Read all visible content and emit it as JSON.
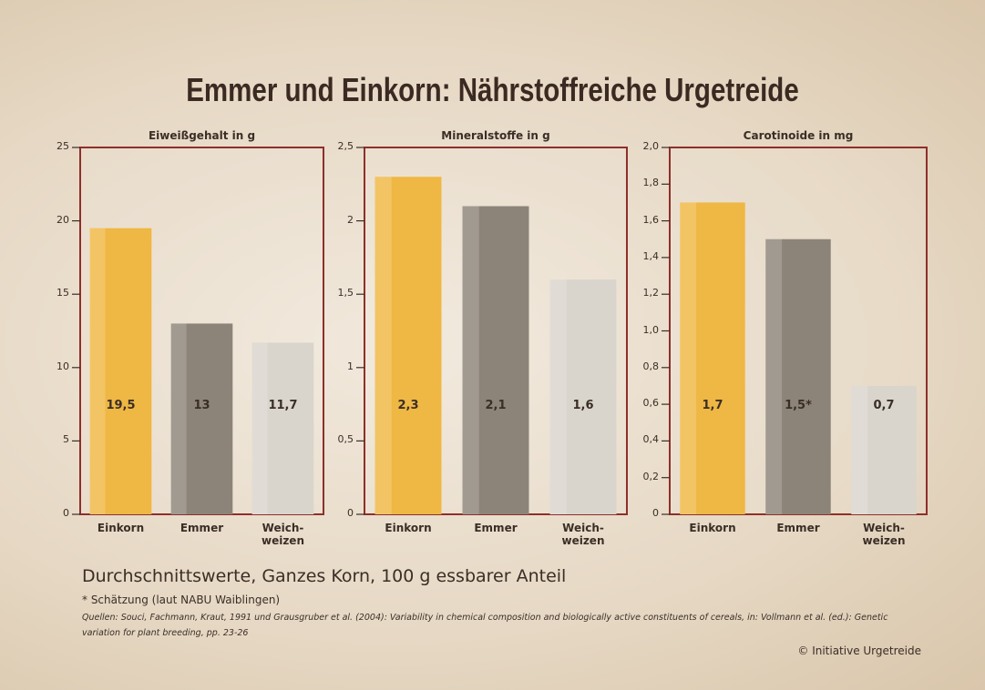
{
  "title": "Emmer und Einkorn: Nährstoffreiche Urgetreide",
  "chart_data": [
    {
      "type": "bar",
      "title": "Eiweißgehalt in g",
      "categories": [
        "Einkorn",
        "Emmer",
        "Weich-\nweizen"
      ],
      "values": [
        19.5,
        13,
        11.7
      ],
      "value_labels": [
        "19,5",
        "13",
        "11,7"
      ],
      "colors": [
        "#efb743",
        "#8c8479",
        "#d9d5cc"
      ],
      "ylim": [
        0,
        25
      ],
      "yticks": [
        0,
        5,
        10,
        15,
        20,
        25
      ]
    },
    {
      "type": "bar",
      "title": "Mineralstoffe in g",
      "categories": [
        "Einkorn",
        "Emmer",
        "Weich-\nweizen"
      ],
      "values": [
        2.3,
        2.1,
        1.6
      ],
      "value_labels": [
        "2,3",
        "2,1",
        "1,6"
      ],
      "colors": [
        "#efb743",
        "#8c8479",
        "#d9d5cc"
      ],
      "ylim": [
        0,
        2.5
      ],
      "yticks": [
        0,
        {
          "value": 0.5,
          "label": "0,5"
        },
        1,
        {
          "value": 1.5,
          "label": "1,5"
        },
        2,
        {
          "value": 2.5,
          "label": "2,5"
        }
      ]
    },
    {
      "type": "bar",
      "title": "Carotinoide in mg",
      "categories": [
        "Einkorn",
        "Emmer",
        "Weich-\nweizen"
      ],
      "values": [
        1.7,
        1.5,
        0.7
      ],
      "value_labels": [
        "1,7",
        "1,5*",
        "0,7"
      ],
      "colors": [
        "#efb743",
        "#8c8479",
        "#d9d5cc"
      ],
      "ylim": [
        0,
        2.0
      ],
      "yticks": [
        0,
        {
          "value": 0.2,
          "label": "0,2"
        },
        {
          "value": 0.4,
          "label": "0,4"
        },
        {
          "value": 0.6,
          "label": "0,6"
        },
        {
          "value": 0.8,
          "label": "0,8"
        },
        {
          "value": 1.0,
          "label": "1,0"
        },
        {
          "value": 1.2,
          "label": "1,2"
        },
        {
          "value": 1.4,
          "label": "1,4"
        },
        {
          "value": 1.6,
          "label": "1,6"
        },
        {
          "value": 1.8,
          "label": "1,8"
        },
        {
          "value": 2.0,
          "label": "2,0"
        }
      ]
    }
  ],
  "notes": {
    "basis": "Durchschnittswerte, Ganzes Korn, 100 g essbarer Anteil",
    "estimate": "* Schätzung (laut NABU Waiblingen)",
    "sources": "Quellen: Souci, Fachmann, Kraut, 1991 und Grausgruber et al. (2004): Variability in chemical composition and biologically active constituents of cereals, in: Vollmann et al. (ed.): Genetic variation for plant breeding, pp. 23-26",
    "copyright": "© Initiative Urgetreide"
  }
}
